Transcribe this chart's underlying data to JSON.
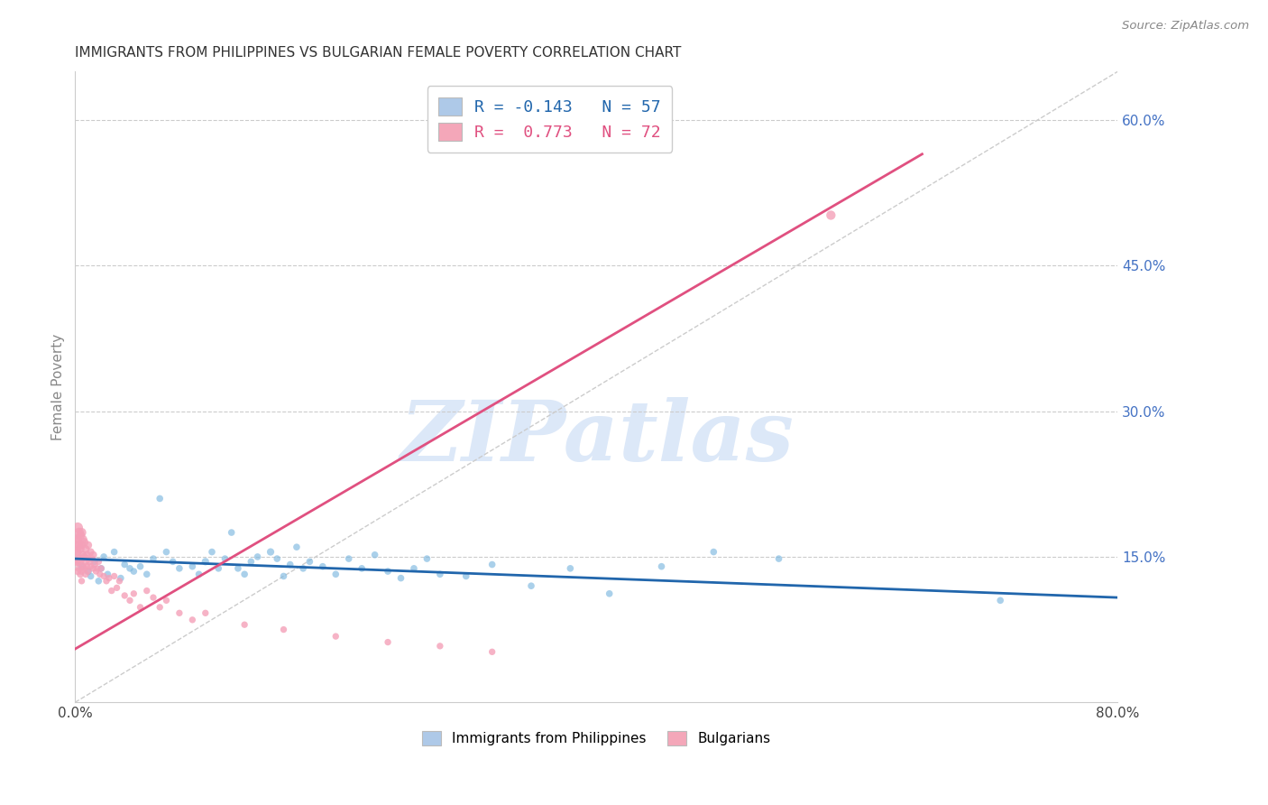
{
  "title": "IMMIGRANTS FROM PHILIPPINES VS BULGARIAN FEMALE POVERTY CORRELATION CHART",
  "source": "Source: ZipAtlas.com",
  "ylabel": "Female Poverty",
  "xlim": [
    0.0,
    0.8
  ],
  "ylim": [
    0.0,
    0.65
  ],
  "xtick_positions": [
    0.0,
    0.1,
    0.2,
    0.3,
    0.4,
    0.5,
    0.6,
    0.7,
    0.8
  ],
  "xtick_labels": [
    "0.0%",
    "",
    "",
    "",
    "",
    "",
    "",
    "",
    "80.0%"
  ],
  "ytick_right": [
    0.15,
    0.3,
    0.45,
    0.6
  ],
  "ytick_right_labels": [
    "15.0%",
    "30.0%",
    "45.0%",
    "60.0%"
  ],
  "blue_color": "#7db8e0",
  "pink_color": "#f4a0b8",
  "trendline_blue": "#2166ac",
  "trendline_pink": "#e05080",
  "watermark_text": "ZIPatlas",
  "watermark_color": "#dce8f8",
  "legend_color_blue": "#aec9e8",
  "legend_color_pink": "#f4a7b9",
  "legend_label1": "Immigrants from Philippines",
  "legend_label2": "Bulgarians",
  "blue_scatter_x": [
    0.005,
    0.01,
    0.012,
    0.015,
    0.018,
    0.02,
    0.022,
    0.025,
    0.03,
    0.035,
    0.038,
    0.042,
    0.045,
    0.05,
    0.055,
    0.06,
    0.065,
    0.07,
    0.075,
    0.08,
    0.09,
    0.095,
    0.1,
    0.105,
    0.11,
    0.115,
    0.12,
    0.125,
    0.13,
    0.135,
    0.14,
    0.15,
    0.155,
    0.16,
    0.165,
    0.17,
    0.175,
    0.18,
    0.19,
    0.2,
    0.21,
    0.22,
    0.23,
    0.24,
    0.25,
    0.26,
    0.27,
    0.28,
    0.3,
    0.32,
    0.35,
    0.38,
    0.41,
    0.45,
    0.49,
    0.54,
    0.71
  ],
  "blue_scatter_y": [
    0.14,
    0.135,
    0.13,
    0.145,
    0.125,
    0.138,
    0.15,
    0.132,
    0.155,
    0.128,
    0.142,
    0.138,
    0.135,
    0.14,
    0.132,
    0.148,
    0.21,
    0.155,
    0.145,
    0.138,
    0.14,
    0.132,
    0.145,
    0.155,
    0.138,
    0.148,
    0.175,
    0.138,
    0.132,
    0.145,
    0.15,
    0.155,
    0.148,
    0.13,
    0.142,
    0.16,
    0.138,
    0.145,
    0.14,
    0.132,
    0.148,
    0.138,
    0.152,
    0.135,
    0.128,
    0.138,
    0.148,
    0.132,
    0.13,
    0.142,
    0.12,
    0.138,
    0.112,
    0.14,
    0.155,
    0.148,
    0.105
  ],
  "blue_scatter_sizes": [
    35,
    35,
    30,
    30,
    30,
    30,
    30,
    30,
    30,
    30,
    30,
    30,
    30,
    30,
    30,
    30,
    30,
    30,
    30,
    30,
    30,
    30,
    35,
    30,
    30,
    30,
    30,
    30,
    30,
    30,
    30,
    35,
    30,
    30,
    30,
    30,
    30,
    30,
    30,
    30,
    30,
    30,
    30,
    30,
    30,
    30,
    30,
    30,
    30,
    30,
    30,
    30,
    30,
    30,
    30,
    30,
    30
  ],
  "pink_scatter_x": [
    0.001,
    0.001,
    0.001,
    0.002,
    0.002,
    0.002,
    0.002,
    0.002,
    0.003,
    0.003,
    0.003,
    0.003,
    0.004,
    0.004,
    0.004,
    0.004,
    0.005,
    0.005,
    0.005,
    0.005,
    0.005,
    0.006,
    0.006,
    0.006,
    0.007,
    0.007,
    0.007,
    0.008,
    0.008,
    0.008,
    0.009,
    0.009,
    0.01,
    0.01,
    0.01,
    0.011,
    0.012,
    0.012,
    0.013,
    0.014,
    0.014,
    0.015,
    0.016,
    0.017,
    0.018,
    0.019,
    0.02,
    0.022,
    0.024,
    0.026,
    0.028,
    0.03,
    0.032,
    0.034,
    0.038,
    0.042,
    0.045,
    0.05,
    0.055,
    0.06,
    0.065,
    0.07,
    0.08,
    0.09,
    0.1,
    0.13,
    0.16,
    0.2,
    0.24,
    0.28,
    0.32,
    0.58
  ],
  "pink_scatter_y": [
    0.165,
    0.155,
    0.145,
    0.18,
    0.168,
    0.155,
    0.145,
    0.135,
    0.175,
    0.162,
    0.148,
    0.138,
    0.172,
    0.158,
    0.145,
    0.132,
    0.175,
    0.162,
    0.148,
    0.135,
    0.125,
    0.168,
    0.152,
    0.14,
    0.165,
    0.15,
    0.138,
    0.158,
    0.145,
    0.132,
    0.152,
    0.14,
    0.162,
    0.148,
    0.135,
    0.145,
    0.155,
    0.14,
    0.148,
    0.152,
    0.138,
    0.142,
    0.135,
    0.138,
    0.145,
    0.132,
    0.138,
    0.13,
    0.125,
    0.128,
    0.115,
    0.13,
    0.118,
    0.125,
    0.11,
    0.105,
    0.112,
    0.098,
    0.115,
    0.108,
    0.098,
    0.105,
    0.092,
    0.085,
    0.092,
    0.08,
    0.075,
    0.068,
    0.062,
    0.058,
    0.052,
    0.502
  ],
  "pink_scatter_sizes": [
    80,
    60,
    50,
    70,
    55,
    45,
    40,
    35,
    60,
    50,
    40,
    35,
    55,
    45,
    38,
    32,
    55,
    45,
    38,
    32,
    28,
    48,
    40,
    34,
    45,
    38,
    32,
    42,
    35,
    30,
    38,
    32,
    40,
    34,
    28,
    32,
    35,
    30,
    32,
    35,
    28,
    30,
    28,
    28,
    30,
    28,
    28,
    28,
    28,
    28,
    28,
    28,
    28,
    28,
    28,
    28,
    28,
    28,
    28,
    28,
    28,
    28,
    28,
    28,
    28,
    28,
    28,
    28,
    28,
    28,
    28,
    55
  ],
  "blue_trend_x": [
    0.0,
    0.8
  ],
  "blue_trend_y": [
    0.148,
    0.108
  ],
  "pink_trend_x": [
    0.0,
    0.65
  ],
  "pink_trend_y": [
    0.055,
    0.565
  ],
  "diag_line_x": [
    0.0,
    0.8
  ],
  "diag_line_y": [
    0.0,
    0.65
  ]
}
